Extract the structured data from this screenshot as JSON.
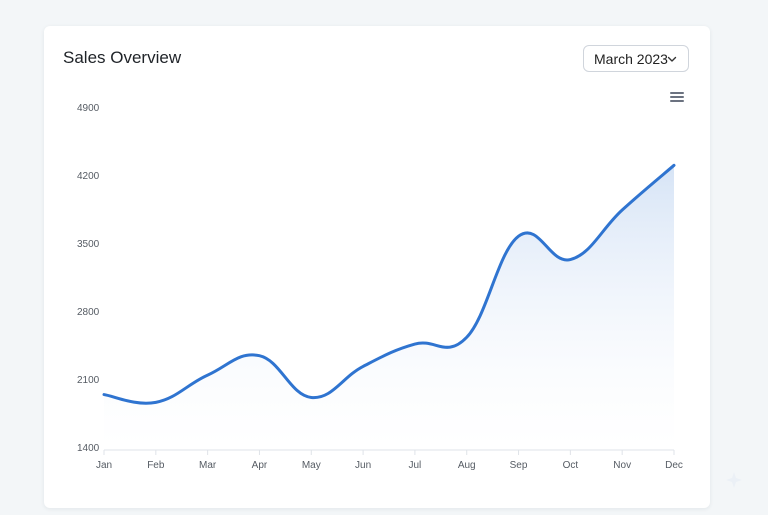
{
  "card": {
    "title": "Sales Overview",
    "month_select": {
      "value": "March 2023",
      "icon": "chevron-down-icon"
    },
    "menu_icon": "hamburger-menu-icon"
  },
  "chart_data": {
    "type": "area",
    "categories": [
      "Jan",
      "Feb",
      "Mar",
      "Apr",
      "May",
      "Jun",
      "Jul",
      "Aug",
      "Sep",
      "Oct",
      "Nov",
      "Dec"
    ],
    "series": [
      {
        "values": [
          1950,
          1870,
          2150,
          2350,
          1920,
          2240,
          2470,
          2540,
          3580,
          3340,
          3850,
          4310
        ]
      }
    ],
    "yticks": [
      1400,
      2100,
      2800,
      3500,
      4200,
      4900
    ],
    "ylim": [
      1400,
      4900
    ],
    "grid": false,
    "colors": {
      "line": "#2f74d0",
      "fill_top": "#c9dbf3",
      "fill_bottom": "#ffffff"
    }
  }
}
